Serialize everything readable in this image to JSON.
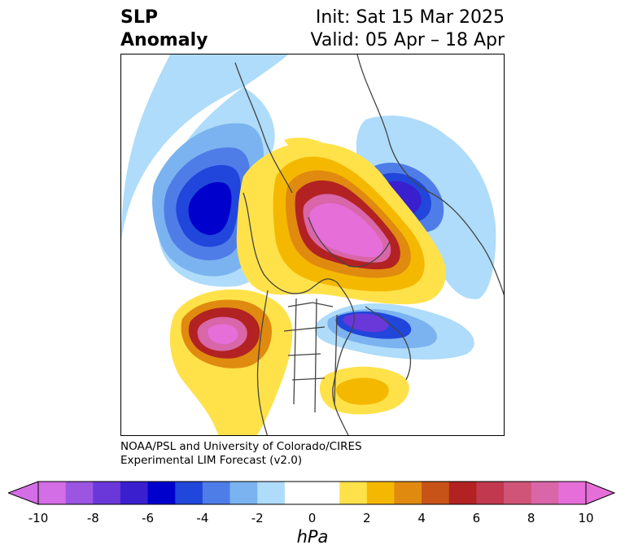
{
  "title": {
    "left_line1": "SLP",
    "left_line2": "Anomaly",
    "right_line1": "Init: Sat 15 Mar 2025",
    "right_line2": "Valid: 05 Apr – 18 Apr"
  },
  "credit": {
    "line1": "NOAA/PSL and University of Colorado/CIRES",
    "line2": "Experimental LIM Forecast (v2.0)"
  },
  "colorbar": {
    "unit_label": "hPa",
    "ticks": [
      "-10",
      "-8",
      "-6",
      "-4",
      "-2",
      "0",
      "2",
      "4",
      "6",
      "8",
      "10"
    ],
    "colors": [
      "#d46ee6",
      "#9b55e0",
      "#6a38d8",
      "#3a1fcf",
      "#0000cc",
      "#2146db",
      "#4f7de8",
      "#7bb3f0",
      "#aedcfa",
      "#ffffff",
      "#ffffff",
      "#ffe24a",
      "#f5b800",
      "#e08a10",
      "#c85318",
      "#b22222",
      "#c1384f",
      "#d05478",
      "#d866a8",
      "#e66ed8"
    ]
  }
}
